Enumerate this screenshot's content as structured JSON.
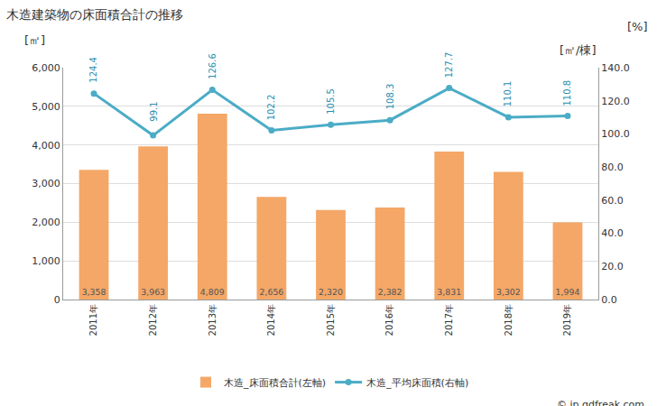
{
  "chart_data": {
    "type": "bar",
    "title": "木造建築物の床面積合計の推移",
    "ylabel": "[㎡]",
    "y2label": "[%]",
    "annotations": [
      "[㎡/棟]",
      "© jp.gdfreak.com"
    ],
    "categories": [
      "2011年",
      "2012年",
      "2013年",
      "2014年",
      "2015年",
      "2016年",
      "2017年",
      "2018年",
      "2019年"
    ],
    "series": [
      {
        "name": "木造_床面積合計(左軸)",
        "type": "bar",
        "color": "#f4a767",
        "values": [
          3358,
          3963,
          4809,
          2656,
          2320,
          2382,
          3831,
          3302,
          1994
        ],
        "value_labels": [
          "3,358",
          "3,963",
          "4,809",
          "2,656",
          "2,320",
          "2,382",
          "3,831",
          "3,302",
          "1,994"
        ]
      },
      {
        "name": "木造_平均床面積(右軸)",
        "type": "line",
        "axis": "y2",
        "color": "#4bacc6",
        "marker": "circle",
        "values": [
          124.4,
          99.1,
          126.6,
          102.2,
          105.5,
          108.3,
          127.7,
          110.1,
          110.8
        ]
      }
    ],
    "ylim": [
      0,
      6000
    ],
    "yticks": [
      0,
      {
        "value": 1000,
        "label": "1,000"
      },
      {
        "value": 2000,
        "label": "2,000"
      },
      {
        "value": 3000,
        "label": "3,000"
      },
      {
        "value": 4000,
        "label": "4,000"
      },
      {
        "value": 5000,
        "label": "5,000"
      },
      {
        "value": 6000,
        "label": "6,000"
      }
    ],
    "y2lim": [
      0,
      140
    ],
    "y2ticks": [
      {
        "value": 0,
        "label": "0.0"
      },
      {
        "value": 20,
        "label": "20.0"
      },
      {
        "value": 40,
        "label": "40.0"
      },
      {
        "value": 60,
        "label": "60.0"
      },
      {
        "value": 80,
        "label": "80.0"
      },
      {
        "value": 100,
        "label": "100.0"
      },
      {
        "value": 120,
        "label": "120.0"
      },
      {
        "value": 140,
        "label": "140.0"
      }
    ],
    "grid": true,
    "legend": "bottom",
    "data_labels": true
  }
}
